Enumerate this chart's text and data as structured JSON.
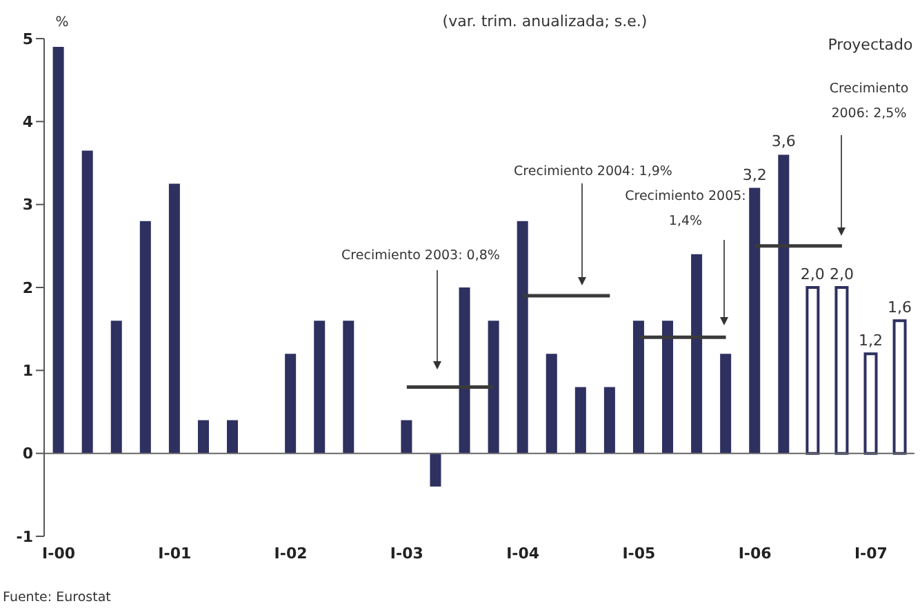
{
  "chart_data": {
    "type": "bar",
    "title": "(var. trim. anualizada; s.e.)",
    "ylabel": "%",
    "categories": [
      "I-00",
      null,
      null,
      null,
      "I-01",
      null,
      null,
      null,
      "I-02",
      null,
      null,
      null,
      "I-03",
      null,
      null,
      null,
      "I-04",
      null,
      null,
      null,
      "I-05",
      null,
      null,
      null,
      "I-06",
      null,
      null,
      null,
      "I-07",
      null
    ],
    "series": [
      {
        "color": "#2e3060",
        "values": [
          4.9,
          3.65,
          1.6,
          2.8,
          3.25,
          0.4,
          0.4,
          null,
          1.2,
          1.6,
          1.6,
          null,
          0.4,
          -0.4,
          2.0,
          1.6,
          2.8,
          1.2,
          0.8,
          0.8,
          1.6,
          1.6,
          2.4,
          1.2,
          3.2,
          3.6,
          null,
          null,
          null,
          null
        ],
        "value_labels": [
          null,
          null,
          null,
          null,
          null,
          null,
          null,
          null,
          null,
          null,
          null,
          null,
          null,
          null,
          null,
          null,
          null,
          null,
          null,
          null,
          null,
          null,
          null,
          null,
          "3,2",
          "3,6",
          null,
          null,
          null,
          null
        ]
      },
      {
        "color": "#2e3060",
        "values": [
          null,
          null,
          null,
          null,
          null,
          null,
          null,
          null,
          null,
          null,
          null,
          null,
          null,
          null,
          null,
          null,
          null,
          null,
          null,
          null,
          null,
          null,
          null,
          null,
          null,
          null,
          2.0,
          2.0,
          1.2,
          1.6
        ],
        "value_labels": [
          null,
          null,
          null,
          null,
          null,
          null,
          null,
          null,
          null,
          null,
          null,
          null,
          null,
          null,
          null,
          null,
          null,
          null,
          null,
          null,
          null,
          null,
          null,
          null,
          null,
          null,
          "2,0",
          "2,0",
          "1,2",
          "1,6"
        ]
      },
      {
        "type": "line",
        "color": "#3a3a3a",
        "values": [
          null,
          null,
          null,
          null,
          null,
          null,
          null,
          null,
          null,
          null,
          null,
          null,
          0.8,
          0.8,
          0.8,
          0.8,
          null,
          null,
          null,
          null,
          null,
          null,
          null,
          null,
          null,
          null,
          null,
          null,
          null,
          null
        ]
      },
      {
        "type": "line",
        "color": "#3a3a3a",
        "values": [
          null,
          null,
          null,
          null,
          null,
          null,
          null,
          null,
          null,
          null,
          null,
          null,
          null,
          null,
          null,
          null,
          1.9,
          1.9,
          1.9,
          1.9,
          null,
          null,
          null,
          null,
          null,
          null,
          null,
          null,
          null,
          null
        ]
      },
      {
        "type": "line",
        "color": "#3a3a3a",
        "values": [
          null,
          null,
          null,
          null,
          null,
          null,
          null,
          null,
          null,
          null,
          null,
          null,
          null,
          null,
          null,
          null,
          null,
          null,
          null,
          null,
          1.4,
          1.4,
          1.4,
          1.4,
          null,
          null,
          null,
          null,
          null,
          null
        ]
      },
      {
        "type": "line",
        "color": "#3a3a3a",
        "values": [
          null,
          null,
          null,
          null,
          null,
          null,
          null,
          null,
          null,
          null,
          null,
          null,
          null,
          null,
          null,
          null,
          null,
          null,
          null,
          null,
          null,
          null,
          null,
          null,
          2.5,
          2.5,
          2.5,
          2.5,
          null,
          null
        ]
      }
    ],
    "ylim": [
      -1,
      5
    ],
    "yticks": [
      -1,
      0,
      1,
      2,
      3,
      4,
      5
    ],
    "grid": false,
    "ref_lines": [
      {
        "axis": "y",
        "value": 0,
        "color": "#666666"
      }
    ],
    "legend": false,
    "marker": "none",
    "annotations": [
      "Proyectado",
      "Crecimiento 2003: 0,8%",
      "Crecimiento 2004: 1,9%",
      "Crecimiento 2005: 1,4%",
      "Crecimiento 2006: 2,5%",
      "Fuente: Eurostat"
    ]
  }
}
